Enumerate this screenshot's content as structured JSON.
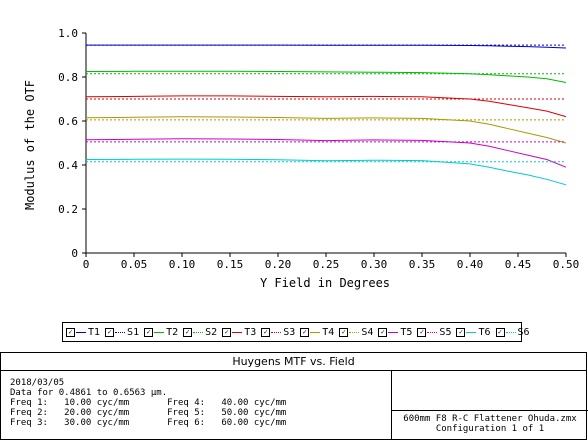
{
  "chart_data": {
    "type": "line",
    "xlabel": "Y Field in Degrees",
    "ylabel": "Modulus of the OTF",
    "xlim": [
      0,
      0.5
    ],
    "ylim": [
      0,
      1.0
    ],
    "x_ticks": [
      "0",
      "0.05",
      "0.10",
      "0.15",
      "0.20",
      "0.25",
      "0.30",
      "0.35",
      "0.40",
      "0.45",
      "0.50"
    ],
    "y_ticks": [
      "0",
      "0.2",
      "0.4",
      "0.6",
      "0.8",
      "1.0"
    ],
    "grid": false,
    "x": [
      0,
      0.05,
      0.1,
      0.15,
      0.2,
      0.25,
      0.3,
      0.35,
      0.4,
      0.42,
      0.44,
      0.46,
      0.48,
      0.5
    ],
    "series": [
      {
        "name": "T1",
        "color": "#0000cc",
        "style": "solid",
        "values": [
          0.945,
          0.945,
          0.945,
          0.945,
          0.945,
          0.944,
          0.944,
          0.944,
          0.943,
          0.942,
          0.94,
          0.938,
          0.935,
          0.932
        ]
      },
      {
        "name": "S1",
        "color": "#0000cc",
        "style": "dotted",
        "values": [
          0.945,
          0.945,
          0.945,
          0.945,
          0.945,
          0.945,
          0.945,
          0.945,
          0.945,
          0.945,
          0.945,
          0.945,
          0.945,
          0.945
        ]
      },
      {
        "name": "T2",
        "color": "#00bb00",
        "style": "solid",
        "values": [
          0.825,
          0.826,
          0.826,
          0.826,
          0.825,
          0.823,
          0.822,
          0.82,
          0.815,
          0.81,
          0.805,
          0.8,
          0.792,
          0.775
        ]
      },
      {
        "name": "S2",
        "color": "#00bb00",
        "style": "dotted",
        "values": [
          0.815,
          0.815,
          0.815,
          0.815,
          0.815,
          0.815,
          0.815,
          0.815,
          0.815,
          0.815,
          0.815,
          0.815,
          0.815,
          0.815
        ]
      },
      {
        "name": "T3",
        "color": "#dd0000",
        "style": "solid",
        "values": [
          0.71,
          0.712,
          0.714,
          0.714,
          0.712,
          0.71,
          0.712,
          0.71,
          0.7,
          0.69,
          0.675,
          0.66,
          0.645,
          0.62
        ]
      },
      {
        "name": "S3",
        "color": "#dd0000",
        "style": "dotted",
        "values": [
          0.7,
          0.7,
          0.7,
          0.7,
          0.7,
          0.7,
          0.7,
          0.7,
          0.7,
          0.7,
          0.7,
          0.7,
          0.7,
          0.7
        ]
      },
      {
        "name": "T4",
        "color": "#aa9900",
        "style": "solid",
        "values": [
          0.615,
          0.617,
          0.619,
          0.618,
          0.616,
          0.612,
          0.614,
          0.612,
          0.6,
          0.585,
          0.565,
          0.545,
          0.525,
          0.5
        ]
      },
      {
        "name": "S4",
        "color": "#aa9900",
        "style": "dotted",
        "values": [
          0.605,
          0.605,
          0.605,
          0.605,
          0.605,
          0.605,
          0.605,
          0.605,
          0.605,
          0.605,
          0.605,
          0.605,
          0.605,
          0.605
        ]
      },
      {
        "name": "T5",
        "color": "#cc00cc",
        "style": "solid",
        "values": [
          0.515,
          0.517,
          0.519,
          0.518,
          0.516,
          0.511,
          0.514,
          0.512,
          0.5,
          0.485,
          0.465,
          0.445,
          0.425,
          0.39
        ]
      },
      {
        "name": "S5",
        "color": "#cc00cc",
        "style": "dotted",
        "values": [
          0.505,
          0.505,
          0.505,
          0.505,
          0.505,
          0.505,
          0.505,
          0.505,
          0.505,
          0.505,
          0.505,
          0.505,
          0.505,
          0.505
        ]
      },
      {
        "name": "T6",
        "color": "#00cccc",
        "style": "solid",
        "values": [
          0.425,
          0.426,
          0.427,
          0.426,
          0.424,
          0.419,
          0.422,
          0.42,
          0.405,
          0.39,
          0.372,
          0.355,
          0.335,
          0.31
        ]
      },
      {
        "name": "S6",
        "color": "#00cccc",
        "style": "dotted",
        "values": [
          0.415,
          0.415,
          0.415,
          0.415,
          0.415,
          0.415,
          0.415,
          0.415,
          0.415,
          0.415,
          0.415,
          0.415,
          0.415,
          0.415
        ]
      }
    ]
  },
  "legend_check": "✓",
  "panel": {
    "title": "Huygens MTF vs. Field",
    "lines": [
      "2018/03/05",
      "Data for 0.4861 to 0.6563 µm.",
      "Freq 1:   10.00 cyc/mm       Freq 4:   40.00 cyc/mm",
      "Freq 2:   20.00 cyc/mm       Freq 5:   50.00 cyc/mm",
      "Freq 3:   30.00 cyc/mm       Freq 6:   60.00 cyc/mm"
    ],
    "file": "600mm F8 R-C Flattener Ohuda.zmx",
    "config": "Configuration 1 of 1"
  }
}
